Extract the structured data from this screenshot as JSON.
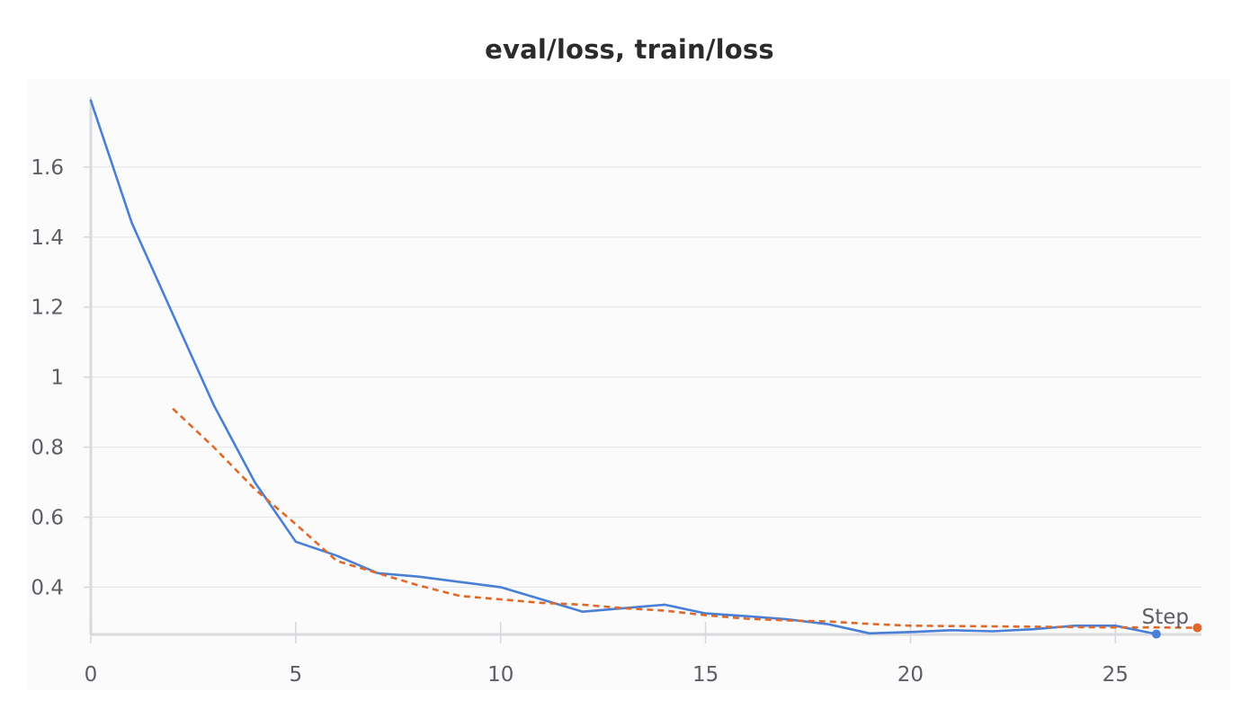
{
  "chart_data": {
    "type": "line",
    "title": "eval/loss, train/loss",
    "xlabel": "Step",
    "ylabel": "",
    "xlim": [
      0,
      27.1
    ],
    "ylim": [
      0.265,
      1.8
    ],
    "xticks": [
      0,
      5,
      10,
      15,
      20,
      25
    ],
    "yticks": [
      0.4,
      0.6,
      0.8,
      1,
      1.2,
      1.4,
      1.6
    ],
    "ytick_labels": [
      "0.4",
      "0.6",
      "0.8",
      "1",
      "1.2",
      "1.4",
      "1.6"
    ],
    "grid": "horizontal",
    "series": [
      {
        "color": "#4a7fd6",
        "style": "solid",
        "end_marker": "circle",
        "x": [
          0,
          1,
          2,
          3,
          4,
          5,
          6,
          7,
          8,
          9,
          10,
          11,
          12,
          13,
          14,
          15,
          16,
          17,
          18,
          19,
          20,
          21,
          22,
          23,
          24,
          25,
          26
        ],
        "y": [
          1.79,
          1.44,
          1.18,
          0.92,
          0.7,
          0.53,
          0.49,
          0.44,
          0.43,
          0.415,
          0.4,
          0.365,
          0.33,
          0.34,
          0.35,
          0.325,
          0.317,
          0.308,
          0.294,
          0.268,
          0.272,
          0.277,
          0.274,
          0.28,
          0.29,
          0.29,
          0.266
        ]
      },
      {
        "color": "#e0692a",
        "style": "dashed",
        "end_marker": "circle",
        "x": [
          2,
          3,
          4,
          5,
          6,
          7,
          8,
          9,
          10,
          11,
          12,
          13,
          14,
          15,
          16,
          17,
          18,
          19,
          20,
          21,
          22,
          23,
          24,
          25,
          26,
          27
        ],
        "y": [
          0.91,
          0.8,
          0.68,
          0.58,
          0.475,
          0.44,
          0.405,
          0.375,
          0.365,
          0.355,
          0.35,
          0.34,
          0.333,
          0.32,
          0.31,
          0.305,
          0.302,
          0.295,
          0.29,
          0.289,
          0.288,
          0.287,
          0.286,
          0.285,
          0.285,
          0.284
        ]
      }
    ]
  }
}
